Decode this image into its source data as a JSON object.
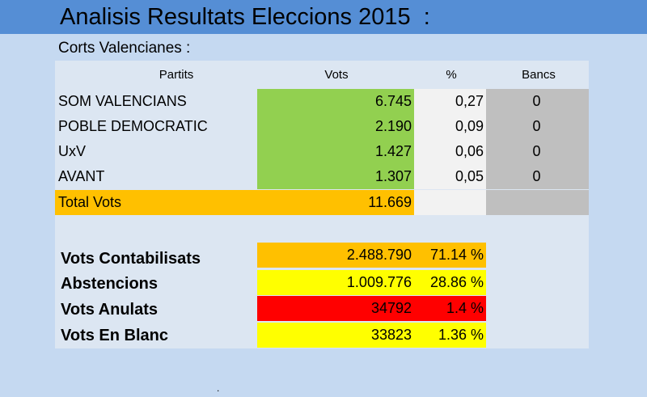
{
  "title": "Analisis Resultats Eleccions 2015  :",
  "subtitle": "Corts Valencianes :",
  "headers": {
    "partits": "Partits",
    "vots": "Vots",
    "pct": "%",
    "bancs": "Bancs"
  },
  "rows": [
    {
      "party": "SOM VALENCIANS",
      "votes": "6.745",
      "pct": "0,27",
      "seats": "0"
    },
    {
      "party": "POBLE DEMOCRATIC",
      "votes": "2.190",
      "pct": "0,09",
      "seats": "0"
    },
    {
      "party": "UxV",
      "votes": "1.427",
      "pct": "0,06",
      "seats": "0"
    },
    {
      "party": "AVANT",
      "votes": "1.307",
      "pct": "0,05",
      "seats": "0"
    }
  ],
  "total": {
    "label": "Total Vots",
    "votes": "11.669"
  },
  "stats": [
    {
      "label": "Vots Contabilisats",
      "value": "2.488.790",
      "pct": "71.14 %",
      "color": "#ffc000"
    },
    {
      "label": "Abstencions",
      "value": "1.009.776",
      "pct": "28.86 %",
      "color": "#ffff00"
    },
    {
      "label": "Vots Anulats",
      "value": "34792",
      "pct": "1.4 %",
      "color": "#ff0000"
    },
    {
      "label": "Vots En Blanc",
      "value": "33823",
      "pct": "1.36 %",
      "color": "#ffff00"
    }
  ],
  "footer_mark": "."
}
